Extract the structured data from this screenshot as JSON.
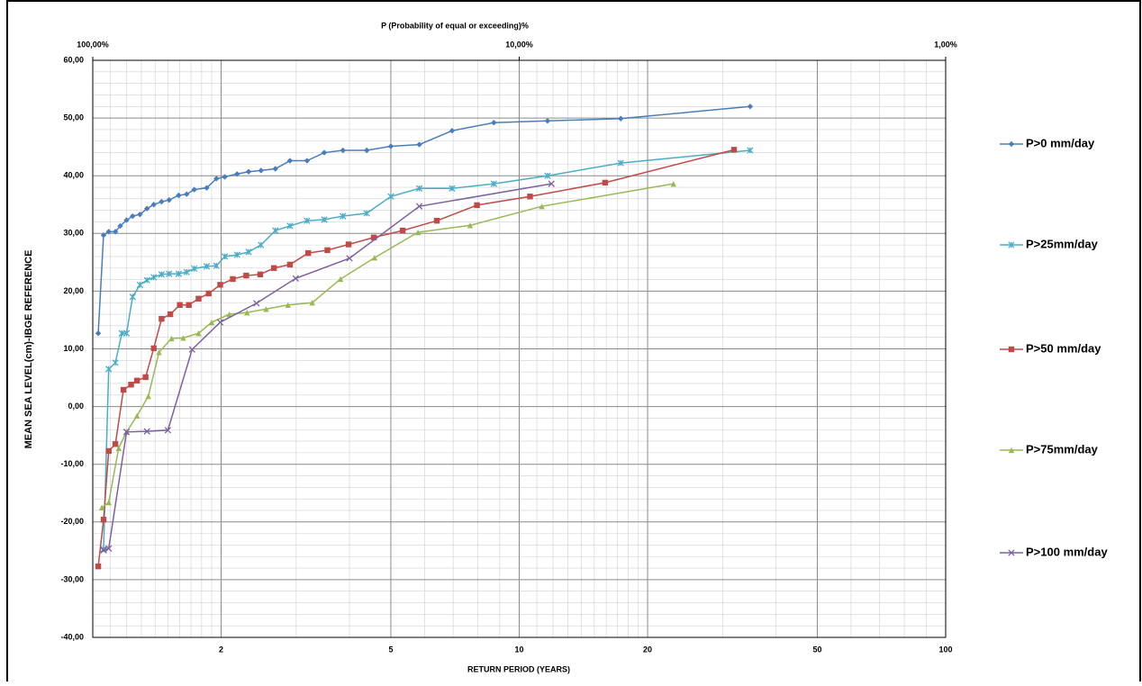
{
  "chart_data": {
    "type": "line",
    "x_scale": "log",
    "grid": true,
    "minor_grid": true,
    "legend": "right",
    "x2_label": "P (Probability of equal or exceeding)%",
    "y_label": "MEAN SEA LEVEL(cm)-IBGE REFERENCE",
    "x_label": "RETURN PERIOD (YEARS)",
    "xlim": [
      1,
      100
    ],
    "xticks": [
      2,
      5,
      10,
      20,
      50,
      100
    ],
    "x2lim": [
      100,
      1
    ],
    "x2ticks": [
      {
        "value": 100,
        "label": "100,00%"
      },
      {
        "value": 10,
        "label": "10,00%"
      },
      {
        "value": 1,
        "label": "1,00%"
      }
    ],
    "ylim": [
      -40,
      60
    ],
    "yticks": [
      {
        "value": -40,
        "label": "-40,00"
      },
      {
        "value": -30,
        "label": "-30,00"
      },
      {
        "value": -20,
        "label": "-20,00"
      },
      {
        "value": -10,
        "label": "-10,00"
      },
      {
        "value": 0,
        "label": "0,00"
      },
      {
        "value": 10,
        "label": "10,00"
      },
      {
        "value": 20,
        "label": "20,00"
      },
      {
        "value": 30,
        "label": "30,00"
      },
      {
        "value": 40,
        "label": "40,00"
      },
      {
        "value": 50,
        "label": "50,00"
      },
      {
        "value": 60,
        "label": "60,00"
      }
    ],
    "series": [
      {
        "name": "P>0 mm/day",
        "color": "#4a7ebb",
        "marker": "diamond",
        "x": [
          1.03,
          1.06,
          1.09,
          1.13,
          1.16,
          1.2,
          1.24,
          1.29,
          1.34,
          1.39,
          1.45,
          1.51,
          1.59,
          1.66,
          1.73,
          1.85,
          1.95,
          2.04,
          2.18,
          2.32,
          2.48,
          2.68,
          2.9,
          3.18,
          3.49,
          3.86,
          4.39,
          5.0,
          5.83,
          6.96,
          8.72,
          11.65,
          17.3,
          34.8
        ],
        "values": [
          12.7,
          29.7,
          30.3,
          30.3,
          31.3,
          32.3,
          33.0,
          33.3,
          34.3,
          35.0,
          35.5,
          35.8,
          36.6,
          36.8,
          37.6,
          37.9,
          39.5,
          39.8,
          40.3,
          40.7,
          40.9,
          41.2,
          42.6,
          42.6,
          44.0,
          44.4,
          44.4,
          45.1,
          45.4,
          47.8,
          49.2,
          49.5,
          49.9,
          52.0
        ]
      },
      {
        "name": "P>25mm/day",
        "color": "#4bacc6",
        "marker": "star",
        "x": [
          1.06,
          1.09,
          1.13,
          1.17,
          1.2,
          1.24,
          1.29,
          1.34,
          1.39,
          1.45,
          1.51,
          1.59,
          1.66,
          1.73,
          1.85,
          1.95,
          2.04,
          2.18,
          2.32,
          2.48,
          2.68,
          2.9,
          3.18,
          3.49,
          3.86,
          4.39,
          5.0,
          5.83,
          6.96,
          8.72,
          11.65,
          17.3,
          34.8
        ],
        "values": [
          -24.7,
          6.5,
          7.6,
          12.7,
          12.7,
          19.0,
          21.1,
          21.9,
          22.4,
          22.9,
          23.0,
          23.0,
          23.3,
          23.9,
          24.3,
          24.4,
          26.0,
          26.3,
          26.8,
          28.0,
          30.5,
          31.3,
          32.2,
          32.4,
          33.0,
          33.5,
          36.4,
          37.8,
          37.8,
          38.6,
          40.0,
          42.2,
          44.4
        ]
      },
      {
        "name": "P>50 mm/day",
        "color": "#be4b48",
        "marker": "square",
        "x": [
          1.03,
          1.06,
          1.09,
          1.13,
          1.18,
          1.23,
          1.27,
          1.33,
          1.39,
          1.45,
          1.52,
          1.6,
          1.68,
          1.77,
          1.87,
          1.99,
          2.13,
          2.29,
          2.47,
          2.66,
          2.9,
          3.2,
          3.55,
          3.98,
          4.56,
          5.33,
          6.41,
          7.96,
          10.6,
          15.9,
          31.9
        ],
        "values": [
          -27.7,
          -19.6,
          -7.7,
          -6.5,
          2.9,
          3.8,
          4.5,
          5.1,
          10.1,
          15.2,
          16.0,
          17.6,
          17.6,
          18.7,
          19.6,
          21.1,
          22.1,
          22.7,
          22.9,
          24.0,
          24.6,
          26.6,
          27.1,
          28.1,
          29.3,
          30.5,
          32.2,
          34.9,
          36.4,
          38.8,
          44.5
        ]
      },
      {
        "name": "P>75mm/day",
        "color": "#98b954",
        "marker": "triangle",
        "x": [
          1.05,
          1.09,
          1.15,
          1.2,
          1.27,
          1.35,
          1.43,
          1.53,
          1.63,
          1.77,
          1.9,
          2.09,
          2.3,
          2.55,
          2.87,
          3.27,
          3.81,
          4.58,
          5.79,
          7.67,
          11.3,
          23.0
        ],
        "values": [
          -17.5,
          -16.6,
          -7.2,
          -4.4,
          -1.6,
          1.8,
          9.4,
          11.8,
          11.9,
          12.7,
          14.6,
          16.0,
          16.3,
          16.9,
          17.6,
          18.0,
          22.1,
          25.8,
          30.2,
          31.4,
          34.7,
          38.6
        ]
      },
      {
        "name": "P>100 mm/day",
        "color": "#7d60a0",
        "marker": "x",
        "x": [
          1.06,
          1.09,
          1.2,
          1.34,
          1.5,
          1.71,
          1.99,
          2.42,
          2.99,
          4.0,
          5.83,
          11.9
        ],
        "values": [
          -24.9,
          -24.6,
          -4.4,
          -4.3,
          -4.1,
          9.9,
          14.6,
          17.9,
          22.2,
          25.7,
          34.7,
          38.6
        ]
      }
    ]
  }
}
